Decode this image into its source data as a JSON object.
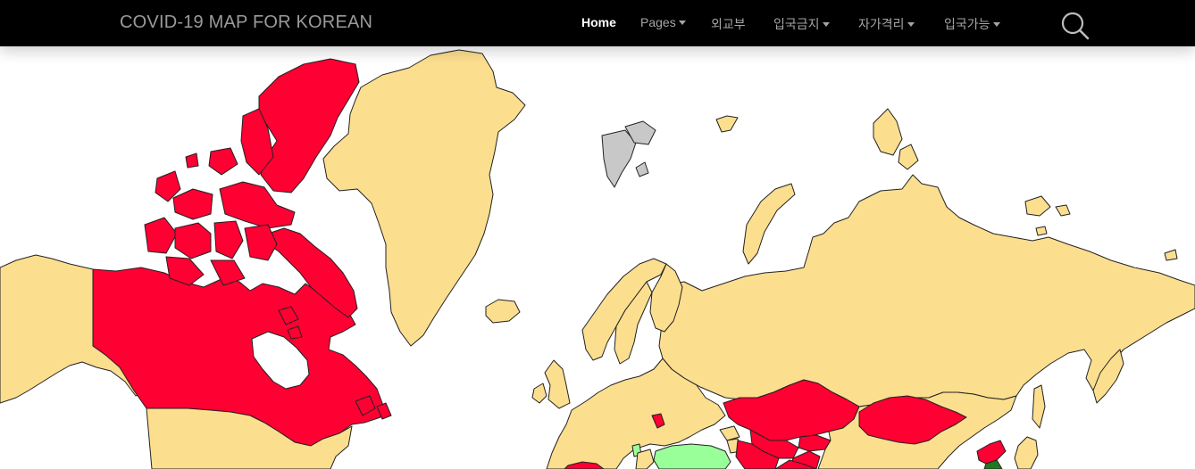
{
  "navbar": {
    "brand": "COVID-19 MAP FOR KOREAN",
    "items": [
      {
        "label": "Home",
        "active": true,
        "dropdown": false
      },
      {
        "label": "Pages",
        "active": false,
        "dropdown": true
      },
      {
        "label": "외교부",
        "active": false,
        "dropdown": false
      },
      {
        "label": "입국금지",
        "active": false,
        "dropdown": true
      },
      {
        "label": "자가격리",
        "active": false,
        "dropdown": true
      },
      {
        "label": "입국가능",
        "active": false,
        "dropdown": true
      }
    ],
    "search_icon": "search-icon"
  },
  "colors": {
    "navbar_bg": "#000000",
    "entry_banned": "#FF0033",
    "self_quarantine": "#FCDE8F",
    "entry_allowed": "#99FF99",
    "home_country": "#1F7A1F",
    "no_data": "#C8C8C8",
    "ocean": "#FFFFFF"
  }
}
